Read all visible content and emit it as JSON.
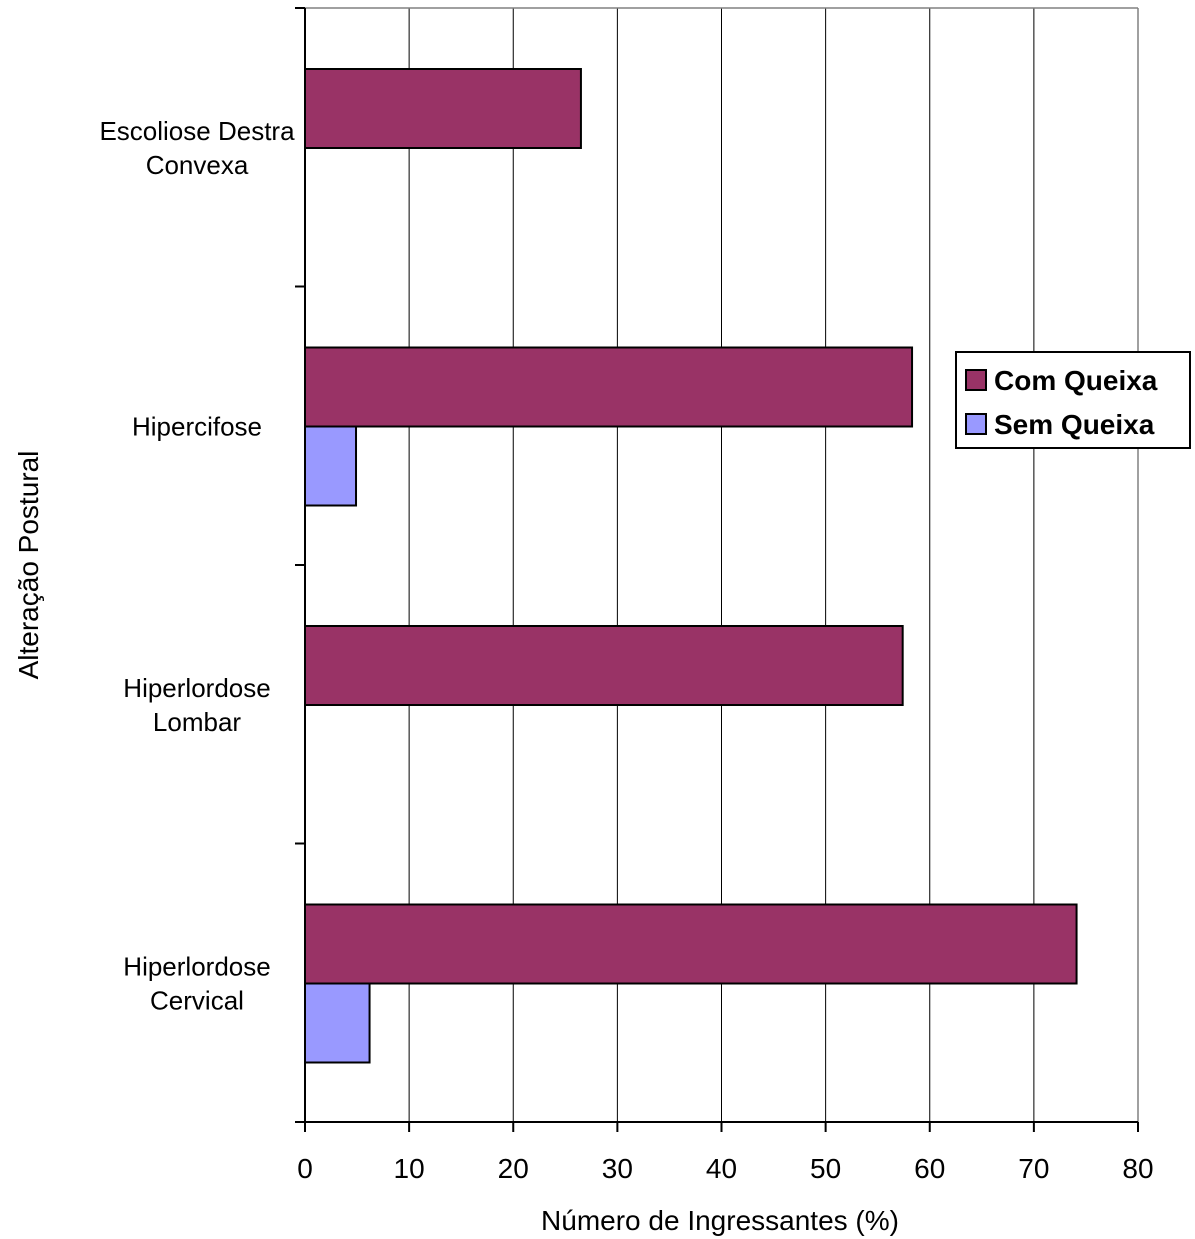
{
  "chart_data": {
    "type": "bar",
    "orientation": "horizontal",
    "categories": [
      [
        "Escoliose Destra",
        "Convexa"
      ],
      [
        "Hipercifose"
      ],
      [
        "Hiperlordose",
        "Lombar"
      ],
      [
        "Hiperlordose",
        "Cervical"
      ]
    ],
    "series": [
      {
        "name": "Com Queixa",
        "color": "#993366",
        "values": [
          26.5,
          58.3,
          57.4,
          74.1
        ]
      },
      {
        "name": "Sem Queixa",
        "color": "#9999FF",
        "values": [
          0,
          4.9,
          0,
          6.2
        ]
      }
    ],
    "xlabel": "Número de Ingressantes (%)",
    "ylabel": "Alteração Postural",
    "xlim": [
      0,
      80
    ],
    "xticks": [
      0,
      10,
      20,
      30,
      40,
      50,
      60,
      70,
      80
    ],
    "grid": "vertical",
    "legend_position": "right"
  }
}
